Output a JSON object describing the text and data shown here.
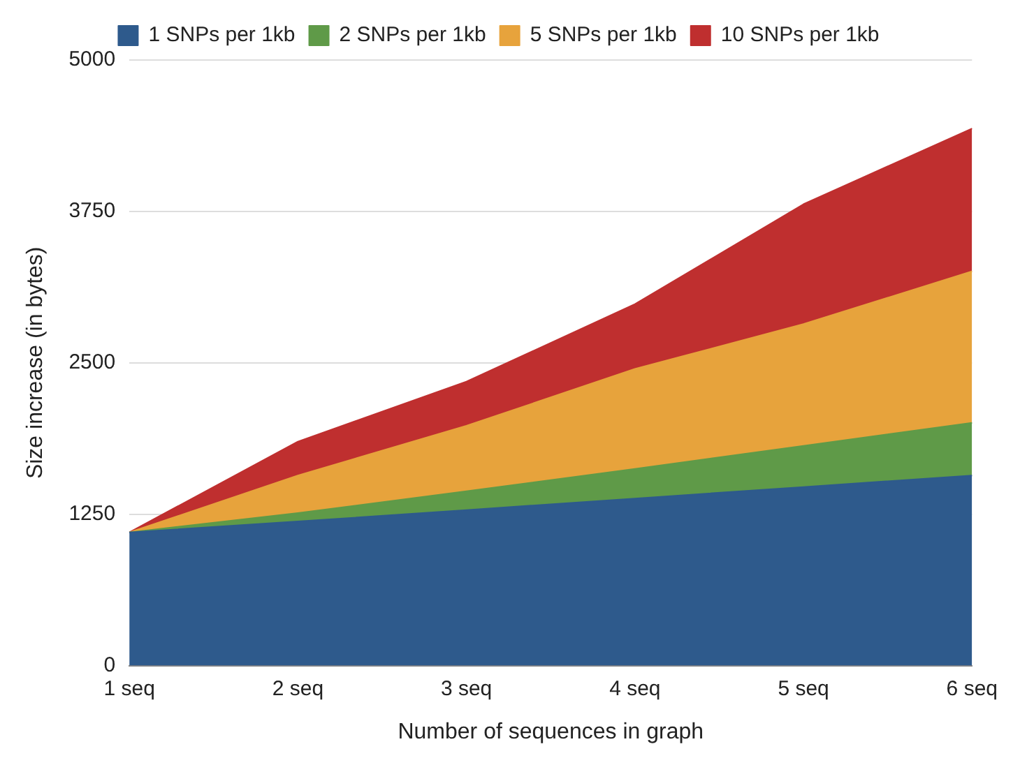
{
  "chart_data": {
    "type": "area",
    "stacked": true,
    "xlabel": "Number of sequences in graph",
    "ylabel": "Size increase (in bytes)",
    "categories": [
      "1 seq",
      "2 seq",
      "3 seq",
      "4 seq",
      "5 seq",
      "6 seq"
    ],
    "series": [
      {
        "name": "1 SNPs per 1kb",
        "color": "#2e5a8c",
        "values": [
          1100,
          1190,
          1285,
          1380,
          1475,
          1570
        ]
      },
      {
        "name": "2 SNPs per 1kb",
        "color": "#5f9a48",
        "values": [
          0,
          70,
          155,
          245,
          340,
          435
        ]
      },
      {
        "name": "5 SNPs per 1kb",
        "color": "#e7a33c",
        "values": [
          0,
          310,
          540,
          825,
          1005,
          1250
        ]
      },
      {
        "name": "10 SNPs per 1kb",
        "color": "#bf2f2f",
        "values": [
          0,
          280,
          365,
          535,
          990,
          1180
        ]
      }
    ],
    "ylim": [
      0,
      5000
    ],
    "yticks": [
      0,
      1250,
      2500,
      3750,
      5000
    ],
    "grid": "y",
    "legend": "top"
  }
}
